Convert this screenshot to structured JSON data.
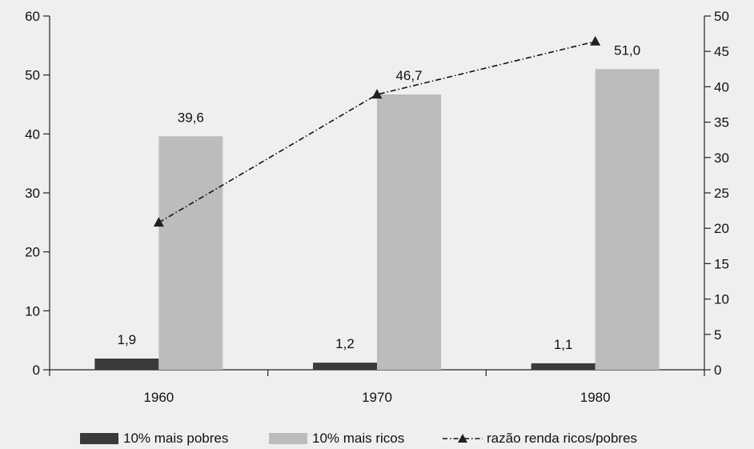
{
  "chart_data": {
    "type": "bar",
    "categories": [
      "1960",
      "1970",
      "1980"
    ],
    "series": [
      {
        "name": "10% mais pobres",
        "type": "bar",
        "axis": "left",
        "color": "#3a3a3a",
        "values": [
          1.9,
          1.2,
          1.1
        ],
        "labels": [
          "1,9",
          "1,2",
          "1,1"
        ]
      },
      {
        "name": "10% mais ricos",
        "type": "bar",
        "axis": "left",
        "color": "#bcbcbc",
        "values": [
          39.6,
          46.7,
          51.0
        ],
        "labels": [
          "39,6",
          "46,7",
          "51,0"
        ]
      },
      {
        "name": "razão renda ricos/pobres",
        "type": "line",
        "axis": "right",
        "color": "#111111",
        "marker": "triangle",
        "line_style": "dash-dot",
        "values": [
          20.8,
          38.9,
          46.4
        ]
      }
    ],
    "y_left": {
      "min": 0,
      "max": 60,
      "ticks": [
        "0",
        "10",
        "20",
        "30",
        "40",
        "50",
        "60"
      ]
    },
    "y_right": {
      "min": 0,
      "max": 50,
      "ticks": [
        "0",
        "5",
        "10",
        "15",
        "20",
        "25",
        "30",
        "35",
        "40",
        "45",
        "50"
      ]
    },
    "grid": false,
    "legend_position": "bottom"
  },
  "legend": {
    "poor_label": "10% mais pobres",
    "rich_label": "10% mais ricos",
    "ratio_label": "razão renda ricos/pobres"
  }
}
